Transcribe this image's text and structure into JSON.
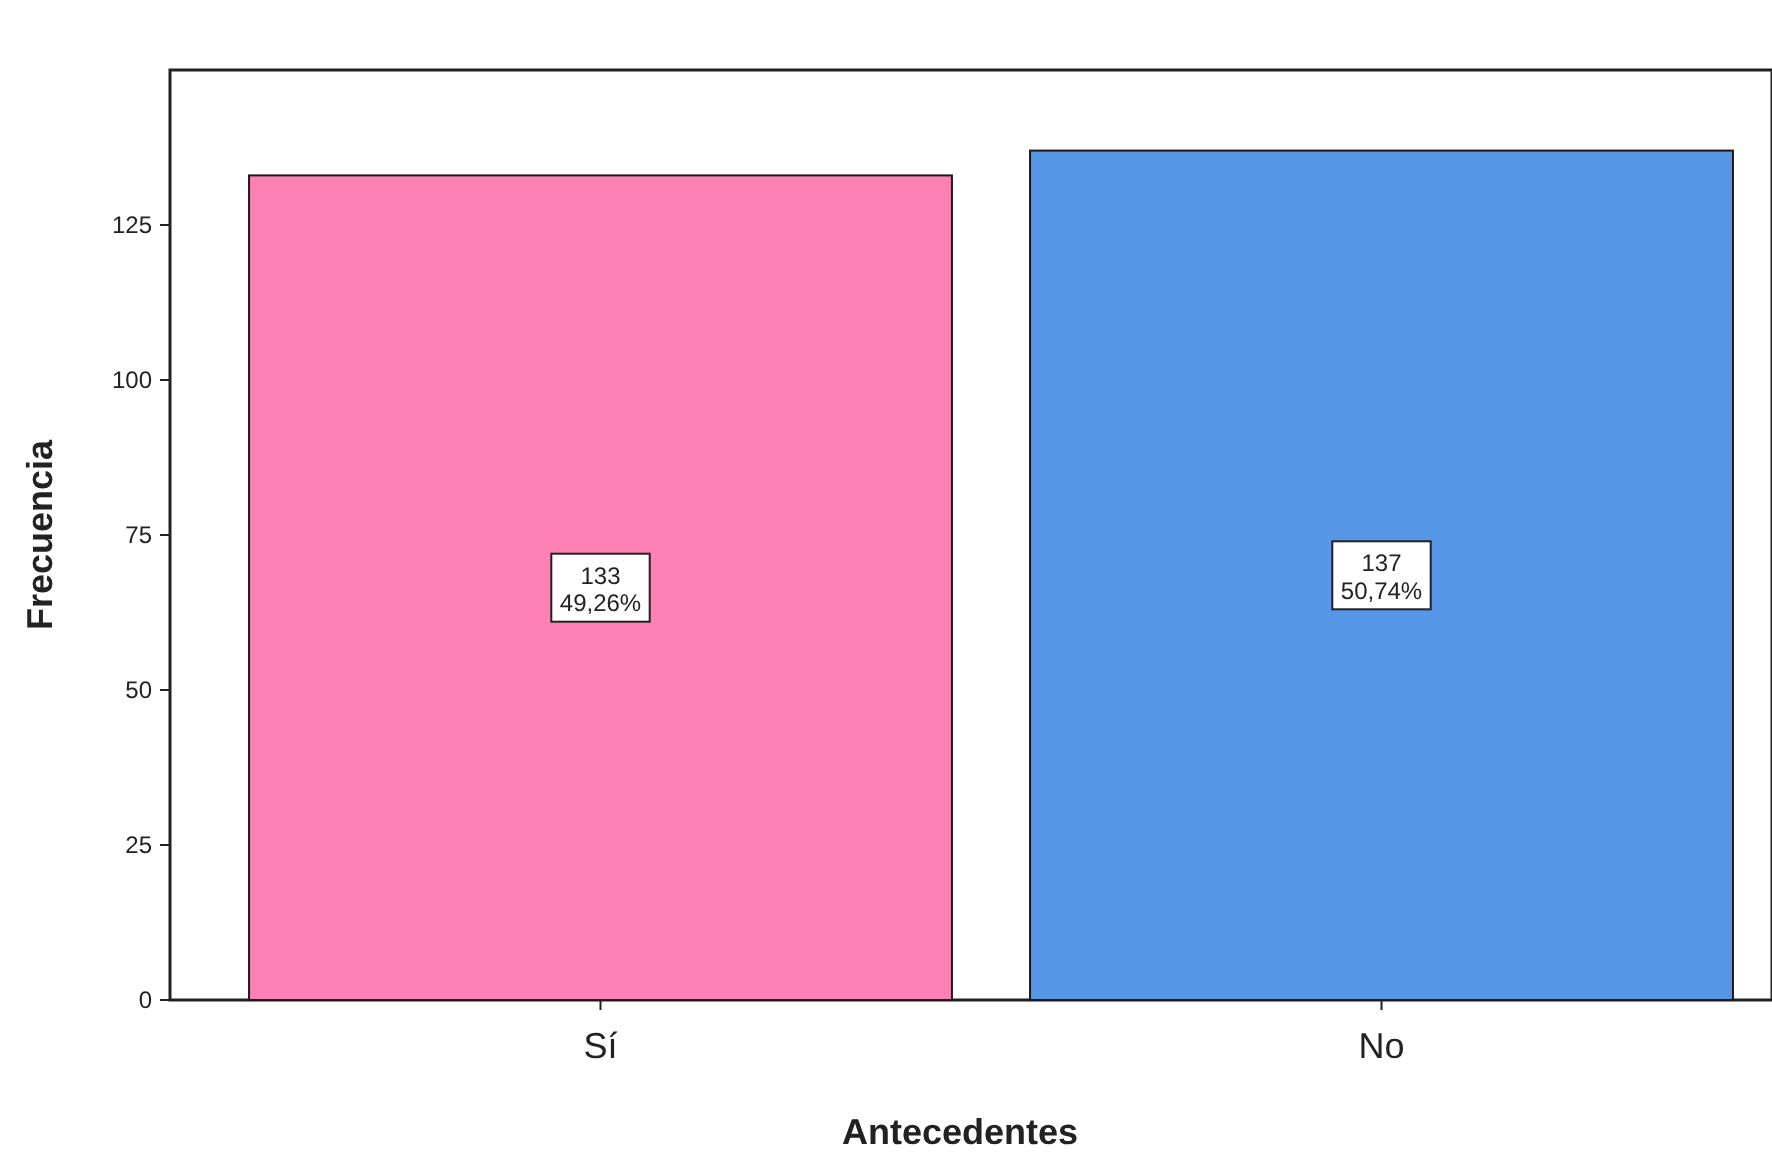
{
  "chart_data": {
    "type": "bar",
    "xlabel": "Antecedentes",
    "ylabel": "Frecuencia",
    "categories": [
      "Sí",
      "No"
    ],
    "values": [
      133,
      137
    ],
    "colors": [
      "#fe80b4",
      "#5596e6"
    ],
    "value_labels": [
      "133\n49,26%",
      "137\n50,74%"
    ],
    "ylim": [
      0,
      150
    ],
    "yticks": [
      0,
      25,
      50,
      75,
      100,
      125
    ],
    "grid": false
  }
}
